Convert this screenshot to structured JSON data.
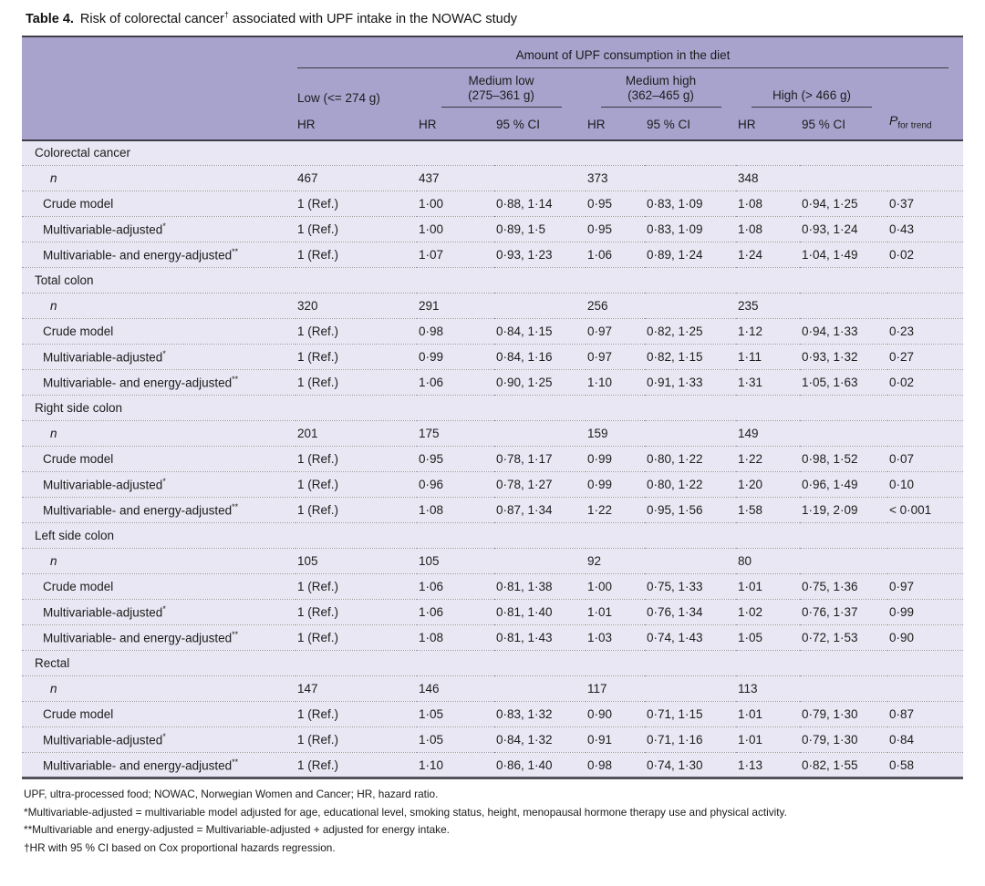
{
  "caption": {
    "prefix": "Table 4.",
    "body": "Risk of colorectal cancer",
    "dagger": "†",
    "suffix": " associated with UPF intake in the NOWAC study"
  },
  "colors": {
    "header_bg": "#a7a3cd",
    "body_bg": "#e9e7f3",
    "dark_rule": "#403e48",
    "dotted_rule": "#97949f"
  },
  "header": {
    "spanner": "Amount of UPF consumption in the diet",
    "group_low": "Low (<= 274 g)",
    "group_medium_low_line1": "Medium low",
    "group_medium_low_line2": "(275–361 g)",
    "group_medium_high_line1": "Medium high",
    "group_medium_high_line2": "(362–465 g)",
    "group_high": "High (> 466 g)",
    "col_hr": "HR",
    "col_ci": "95 % CI",
    "col_p_main": "P",
    "col_p_sub": "for trend"
  },
  "table": {
    "columns": [
      "row-label",
      "HR low",
      "HR medium-low",
      "95% CI medium-low",
      "HR medium-high",
      "95% CI medium-high",
      "HR high",
      "95% CI high",
      "P for trend"
    ],
    "sections": [
      {
        "name": "Colorectal cancer",
        "rows": [
          {
            "label": "n",
            "italic": true,
            "cells": [
              "467",
              "437",
              "",
              "373",
              "",
              "348",
              "",
              ""
            ]
          },
          {
            "label": "Crude model",
            "cells": [
              "1 (Ref.)",
              "1·00",
              "0·88, 1·14",
              "0·95",
              "0·83, 1·09",
              "1·08",
              "0·94, 1·25",
              "0·37"
            ]
          },
          {
            "label": "Multivariable-adjusted",
            "sup": "*",
            "cells": [
              "1 (Ref.)",
              "1·00",
              "0·89, 1·5",
              "0·95",
              "0·83, 1·09",
              "1·08",
              "0·93, 1·24",
              "0·43"
            ]
          },
          {
            "label": "Multivariable- and energy-adjusted",
            "sup": "**",
            "cells": [
              "1 (Ref.)",
              "1·07",
              "0·93, 1·23",
              "1·06",
              "0·89, 1·24",
              "1·24",
              "1·04, 1·49",
              "0·02"
            ]
          }
        ]
      },
      {
        "name": "Total colon",
        "rows": [
          {
            "label": "n",
            "italic": true,
            "cells": [
              "320",
              "291",
              "",
              "256",
              "",
              "235",
              "",
              ""
            ]
          },
          {
            "label": "Crude model",
            "cells": [
              "1 (Ref.)",
              "0·98",
              "0·84, 1·15",
              "0·97",
              "0·82, 1·25",
              "1·12",
              "0·94, 1·33",
              "0·23"
            ]
          },
          {
            "label": "Multivariable-adjusted",
            "sup": "*",
            "cells": [
              "1 (Ref.)",
              "0·99",
              "0·84, 1·16",
              "0·97",
              "0·82, 1·15",
              "1·11",
              "0·93, 1·32",
              "0·27"
            ]
          },
          {
            "label": "Multivariable- and energy-adjusted",
            "sup": "**",
            "cells": [
              "1 (Ref.)",
              "1·06",
              "0·90, 1·25",
              "1·10",
              "0·91, 1·33",
              "1·31",
              "1·05, 1·63",
              "0·02"
            ]
          }
        ]
      },
      {
        "name": "Right side colon",
        "rows": [
          {
            "label": "n",
            "italic": true,
            "cells": [
              "201",
              "175",
              "",
              "159",
              "",
              "149",
              "",
              ""
            ]
          },
          {
            "label": "Crude model",
            "cells": [
              "1 (Ref.)",
              "0·95",
              "0·78, 1·17",
              "0·99",
              "0·80, 1·22",
              "1·22",
              "0·98, 1·52",
              "0·07"
            ]
          },
          {
            "label": "Multivariable-adjusted",
            "sup": "*",
            "cells": [
              "1 (Ref.)",
              "0·96",
              "0·78, 1·27",
              "0·99",
              "0·80, 1·22",
              "1·20",
              "0·96, 1·49",
              "0·10"
            ]
          },
          {
            "label": "Multivariable- and energy-adjusted",
            "sup": "**",
            "cells": [
              "1 (Ref.)",
              "1·08",
              "0·87, 1·34",
              "1·22",
              "0·95, 1·56",
              "1·58",
              "1·19, 2·09",
              "< 0·001"
            ]
          }
        ]
      },
      {
        "name": "Left side colon",
        "rows": [
          {
            "label": "n",
            "italic": true,
            "cells": [
              "105",
              "105",
              "",
              "92",
              "",
              "80",
              "",
              ""
            ]
          },
          {
            "label": "Crude model",
            "cells": [
              "1 (Ref.)",
              "1·06",
              "0·81, 1·38",
              "1·00",
              "0·75, 1·33",
              "1·01",
              "0·75, 1·36",
              "0·97"
            ]
          },
          {
            "label": "Multivariable-adjusted",
            "sup": "*",
            "cells": [
              "1 (Ref.)",
              "1·06",
              "0·81, 1·40",
              "1·01",
              "0·76, 1·34",
              "1·02",
              "0·76, 1·37",
              "0·99"
            ]
          },
          {
            "label": "Multivariable- and energy-adjusted",
            "sup": "**",
            "cells": [
              "1 (Ref.)",
              "1·08",
              "0·81, 1·43",
              "1·03",
              "0·74, 1·43",
              "1·05",
              "0·72, 1·53",
              "0·90"
            ]
          }
        ]
      },
      {
        "name": "Rectal",
        "rows": [
          {
            "label": "n",
            "italic": true,
            "cells": [
              "147",
              "146",
              "",
              "117",
              "",
              "113",
              "",
              ""
            ]
          },
          {
            "label": "Crude model",
            "cells": [
              "1 (Ref.)",
              "1·05",
              "0·83, 1·32",
              "0·90",
              "0·71, 1·15",
              "1·01",
              "0·79, 1·30",
              "0·87"
            ]
          },
          {
            "label": "Multivariable-adjusted",
            "sup": "*",
            "cells": [
              "1 (Ref.)",
              "1·05",
              "0·84, 1·32",
              "0·91",
              "0·71, 1·16",
              "1·01",
              "0·79, 1·30",
              "0·84"
            ]
          },
          {
            "label": "Multivariable- and energy-adjusted",
            "sup": "**",
            "cells": [
              "1 (Ref.)",
              "1·10",
              "0·86, 1·40",
              "0·98",
              "0·74, 1·30",
              "1·13",
              "0·82, 1·55",
              "0·58"
            ]
          }
        ]
      }
    ]
  },
  "footnotes": [
    "UPF, ultra-processed food; NOWAC, Norwegian Women and Cancer; HR, hazard ratio.",
    "*Multivariable-adjusted = multivariable model adjusted for age, educational level, smoking status, height, menopausal hormone therapy use and physical activity.",
    "**Multivariable and energy-adjusted = Multivariable-adjusted + adjusted for energy intake.",
    "†HR with 95 % CI based on Cox proportional hazards regression."
  ]
}
